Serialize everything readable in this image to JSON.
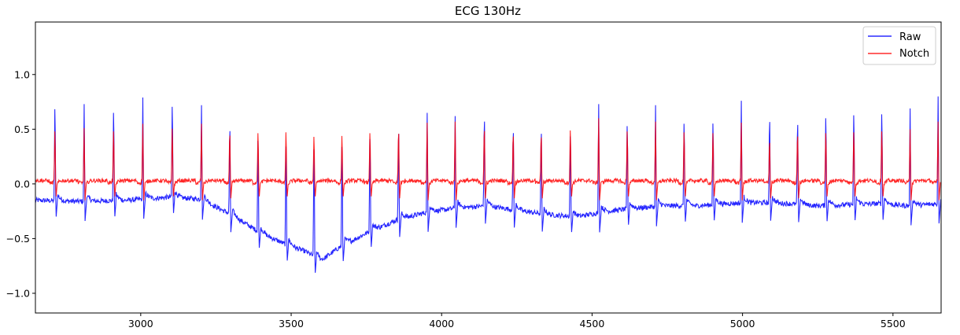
{
  "chart_data": {
    "type": "line",
    "title": "ECG 130Hz",
    "xlabel": "",
    "ylabel": "",
    "xlim": [
      2650,
      5660
    ],
    "ylim": [
      -1.18,
      1.48
    ],
    "xticks": [
      3000,
      3500,
      4000,
      4500,
      5000,
      5500
    ],
    "yticks": [
      -1.0,
      -0.5,
      0.0,
      0.5,
      1.0
    ],
    "ytick_labels": [
      "−1.0",
      "−0.5",
      "0.0",
      "0.5",
      "1.0"
    ],
    "grid": false,
    "legend_position": "top-right",
    "beats": [
      2715,
      2812,
      2910,
      3007,
      3105,
      3202,
      3296,
      3390,
      3483,
      3576,
      3669,
      3762,
      3857,
      3952,
      4045,
      4142,
      4238,
      4331,
      4428,
      4522,
      4617,
      4711,
      4806,
      4902,
      4996,
      5090,
      5183,
      5277,
      5370,
      5463,
      5557,
      5650
    ],
    "series": [
      {
        "name": "Raw",
        "color": "#0000ff",
        "r_peaks": [
          0.85,
          0.73,
          0.81,
          0.79,
          0.87,
          0.72,
          0.67,
          0.56,
          0.52,
          0.51,
          0.52,
          0.58,
          0.65,
          0.65,
          0.62,
          0.76,
          0.64,
          0.64,
          0.58,
          0.73,
          0.68,
          0.72,
          0.7,
          0.7,
          0.76,
          0.75,
          0.72,
          0.76,
          0.79,
          0.8,
          0.69,
          0.8
        ],
        "baseline_x": [
          2650,
          2800,
          2950,
          3100,
          3200,
          3300,
          3400,
          3480,
          3550,
          3600,
          3660,
          3750,
          3850,
          3950,
          4050,
          4150,
          4250,
          4350,
          4450,
          4550,
          4650,
          4750,
          4850,
          4950,
          5050,
          5150,
          5250,
          5350,
          5450,
          5550,
          5660
        ],
        "baseline_y": [
          -0.15,
          -0.16,
          -0.15,
          -0.12,
          -0.14,
          -0.28,
          -0.45,
          -0.55,
          -0.62,
          -0.7,
          -0.58,
          -0.45,
          -0.33,
          -0.26,
          -0.22,
          -0.2,
          -0.24,
          -0.28,
          -0.3,
          -0.25,
          -0.22,
          -0.2,
          -0.2,
          -0.18,
          -0.17,
          -0.18,
          -0.2,
          -0.19,
          -0.18,
          -0.2,
          -0.18
        ]
      },
      {
        "name": "Notch",
        "color": "#ff0000",
        "r_peaks": [
          0.57,
          0.51,
          0.57,
          0.55,
          0.6,
          0.55,
          0.56,
          0.55,
          0.56,
          0.51,
          0.52,
          0.55,
          0.58,
          0.56,
          0.57,
          0.61,
          0.55,
          0.54,
          0.58,
          0.6,
          0.57,
          0.57,
          0.56,
          0.55,
          0.56,
          0.48,
          0.55,
          0.55,
          0.56,
          0.57,
          0.5,
          0.57
        ],
        "baseline": 0.03
      }
    ]
  }
}
